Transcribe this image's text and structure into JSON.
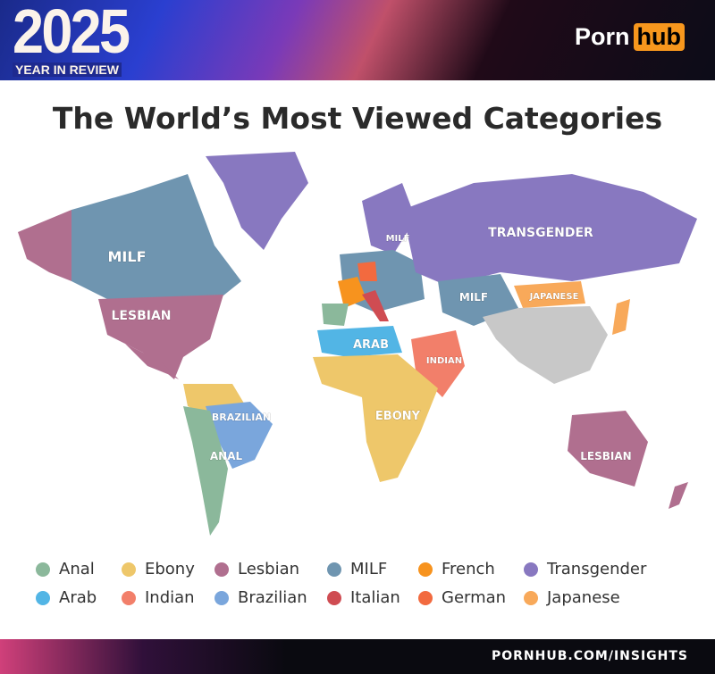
{
  "header": {
    "year": "2025",
    "subtitle": "YEAR IN REVIEW",
    "logo_left": "Porn",
    "logo_right": "hub"
  },
  "title": "The World’s Most Viewed Categories",
  "map_labels": {
    "canada": "MILF",
    "usa": "LESBIAN",
    "brazil": "BRAZILIAN",
    "argentina": "ANAL",
    "arab": "ARAB",
    "india": "INDIAN",
    "africa": "EBONY",
    "scandinavia": "MILF",
    "russia": "TRANSGENDER",
    "kazakhstan": "MILF",
    "mongolia": "JAPANESE",
    "australia": "LESBIAN"
  },
  "legend": [
    {
      "label": "Anal",
      "color": "#8bb89b"
    },
    {
      "label": "Ebony",
      "color": "#eec76a"
    },
    {
      "label": "Lesbian",
      "color": "#b06f8f"
    },
    {
      "label": "MILF",
      "color": "#6f95b0"
    },
    {
      "label": "French",
      "color": "#f7931e"
    },
    {
      "label": "Transgender",
      "color": "#8878c0"
    },
    {
      "label": "Arab",
      "color": "#52b5e5"
    },
    {
      "label": "Indian",
      "color": "#f27f6a"
    },
    {
      "label": "Brazilian",
      "color": "#7aa6dc"
    },
    {
      "label": "Italian",
      "color": "#cf4c52"
    },
    {
      "label": "German",
      "color": "#f26a3f"
    },
    {
      "label": "Japanese",
      "color": "#f8a95a"
    }
  ],
  "no_data_color": "#c8c8c8",
  "footer": "PORNHUB.COM/INSIGHTS"
}
